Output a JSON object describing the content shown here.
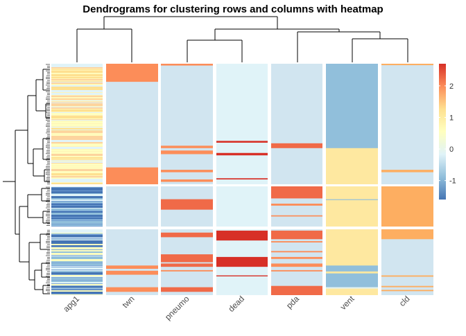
{
  "chart_data": {
    "type": "heatmap",
    "title": "Dendrograms for clustering rows and columns with heatmap",
    "columns": [
      "apg1",
      "twn",
      "pneumo",
      "dead",
      "pda",
      "vent",
      "cld"
    ],
    "row_clusters": 3,
    "column_splits": 7,
    "legend": {
      "position": "right",
      "ticks": [
        -1,
        0,
        1,
        2
      ],
      "range": [
        -1.6,
        2.7
      ],
      "colors": [
        "#4575b4",
        "#91bfdb",
        "#e0f3f8",
        "#ffffbf",
        "#fee090",
        "#fc8d59",
        "#d73027"
      ]
    },
    "cells": [
      {
        "column": "apg1",
        "cluster": 1,
        "pattern": "striped-yellow",
        "base": "#fff4b8",
        "stripes": [
          "#fee090",
          "#ffffbf",
          "#fdd49e",
          "#e0f3f8"
        ]
      },
      {
        "column": "apg1",
        "cluster": 2,
        "pattern": "striped-blue",
        "base": "#6f9bd1",
        "stripes": [
          "#4575b4",
          "#91bfdb",
          "#e0f3f8"
        ]
      },
      {
        "column": "apg1",
        "cluster": 3,
        "pattern": "striped-blue",
        "base": "#7ea6d6",
        "stripes": [
          "#4575b4",
          "#91bfdb",
          "#e0f3f8",
          "#ffffbf"
        ]
      },
      {
        "column": "twn",
        "cluster": 1,
        "base": "#d1e5f0",
        "bands": [
          {
            "from": 0.0,
            "to": 0.15,
            "color": "#fc8d59"
          },
          {
            "from": 0.86,
            "to": 1.0,
            "color": "#fc8d59"
          }
        ]
      },
      {
        "column": "twn",
        "cluster": 2,
        "base": "#d1e5f0",
        "bands": []
      },
      {
        "column": "twn",
        "cluster": 3,
        "base": "#d1e5f0",
        "bands": [
          {
            "from": 0.55,
            "to": 0.6,
            "color": "#fc8d59"
          },
          {
            "from": 0.63,
            "to": 0.69,
            "color": "#fc8d59"
          },
          {
            "from": 0.88,
            "to": 0.95,
            "color": "#fc8d59"
          }
        ]
      },
      {
        "column": "pneumo",
        "cluster": 1,
        "base": "#d1e5f0",
        "bands": [
          {
            "from": 0.0,
            "to": 0.015,
            "color": "#fc8d59"
          },
          {
            "from": 0.68,
            "to": 0.7,
            "color": "#fc8d59"
          },
          {
            "from": 0.72,
            "to": 0.75,
            "color": "#fc8d59"
          },
          {
            "from": 0.88,
            "to": 0.9,
            "color": "#fc8d59"
          },
          {
            "from": 0.96,
            "to": 0.98,
            "color": "#fc8d59"
          }
        ]
      },
      {
        "column": "pneumo",
        "cluster": 2,
        "base": "#d1e5f0",
        "bands": [
          {
            "from": 0.32,
            "to": 0.58,
            "color": "#f06a48"
          }
        ]
      },
      {
        "column": "pneumo",
        "cluster": 3,
        "base": "#d1e5f0",
        "bands": [
          {
            "from": 0.05,
            "to": 0.12,
            "color": "#f06a48"
          },
          {
            "from": 0.38,
            "to": 0.5,
            "color": "#f06a48"
          },
          {
            "from": 0.52,
            "to": 0.57,
            "color": "#f06a48"
          },
          {
            "from": 0.62,
            "to": 0.64,
            "color": "#fc8d59"
          },
          {
            "from": 0.88,
            "to": 0.95,
            "color": "#f06a48"
          }
        ]
      },
      {
        "column": "dead",
        "cluster": 1,
        "base": "#e0f3f8",
        "bands": [
          {
            "from": 0.64,
            "to": 0.655,
            "color": "#d73027"
          },
          {
            "from": 0.74,
            "to": 0.76,
            "color": "#d73027"
          },
          {
            "from": 0.95,
            "to": 0.96,
            "color": "#d73027"
          }
        ]
      },
      {
        "column": "dead",
        "cluster": 2,
        "base": "#e0f3f8",
        "bands": []
      },
      {
        "column": "dead",
        "cluster": 3,
        "base": "#e0f3f8",
        "bands": [
          {
            "from": 0.02,
            "to": 0.17,
            "color": "#d73027"
          },
          {
            "from": 0.42,
            "to": 0.57,
            "color": "#d73027"
          },
          {
            "from": 0.7,
            "to": 0.715,
            "color": "#d73027"
          }
        ]
      },
      {
        "column": "pda",
        "cluster": 1,
        "base": "#d1e5f0",
        "bands": [
          {
            "from": 0.66,
            "to": 0.7,
            "color": "#f06a48"
          }
        ]
      },
      {
        "column": "pda",
        "cluster": 2,
        "base": "#d1e5f0",
        "bands": [
          {
            "from": 0.0,
            "to": 0.3,
            "color": "#f06a48"
          },
          {
            "from": 0.43,
            "to": 0.48,
            "color": "#fc8d59"
          },
          {
            "from": 0.72,
            "to": 0.75,
            "color": "#fc8d59"
          }
        ]
      },
      {
        "column": "pda",
        "cluster": 3,
        "base": "#d1e5f0",
        "bands": [
          {
            "from": 0.02,
            "to": 0.15,
            "color": "#f06a48"
          },
          {
            "from": 0.18,
            "to": 0.2,
            "color": "#fc8d59"
          },
          {
            "from": 0.33,
            "to": 0.35,
            "color": "#fc8d59"
          },
          {
            "from": 0.42,
            "to": 0.45,
            "color": "#fc8d59"
          },
          {
            "from": 0.52,
            "to": 0.57,
            "color": "#fc8d59"
          },
          {
            "from": 0.62,
            "to": 0.64,
            "color": "#fc8d59"
          },
          {
            "from": 0.86,
            "to": 1.0,
            "color": "#f06a48"
          }
        ]
      },
      {
        "column": "vent",
        "cluster": 1,
        "base": "#fee8a0",
        "bands": [
          {
            "from": 0.0,
            "to": 0.7,
            "color": "#91bfdb"
          }
        ]
      },
      {
        "column": "vent",
        "cluster": 2,
        "base": "#fee8a0",
        "bands": [
          {
            "from": 0.32,
            "to": 0.34,
            "color": "#91bfdb"
          }
        ]
      },
      {
        "column": "vent",
        "cluster": 3,
        "base": "#fee8a0",
        "bands": [
          {
            "from": 0.55,
            "to": 0.64,
            "color": "#91bfdb"
          },
          {
            "from": 0.67,
            "to": 0.88,
            "color": "#91bfdb"
          },
          {
            "from": 0.88,
            "to": 0.9,
            "color": "#e0f3f8"
          }
        ]
      },
      {
        "column": "cld",
        "cluster": 1,
        "base": "#d1e5f0",
        "bands": [
          {
            "from": 0.0,
            "to": 0.012,
            "color": "#fdae61"
          },
          {
            "from": 0.88,
            "to": 0.9,
            "color": "#fdae61"
          }
        ]
      },
      {
        "column": "cld",
        "cluster": 2,
        "base": "#fdae61",
        "bands": []
      },
      {
        "column": "cld",
        "cluster": 3,
        "base": "#d1e5f0",
        "bands": [
          {
            "from": 0.0,
            "to": 0.15,
            "color": "#fdae61"
          },
          {
            "from": 0.7,
            "to": 0.72,
            "color": "#fdae61"
          },
          {
            "from": 0.86,
            "to": 0.88,
            "color": "#fdae61"
          },
          {
            "from": 0.92,
            "to": 0.94,
            "color": "#fdae61"
          }
        ]
      }
    ]
  }
}
